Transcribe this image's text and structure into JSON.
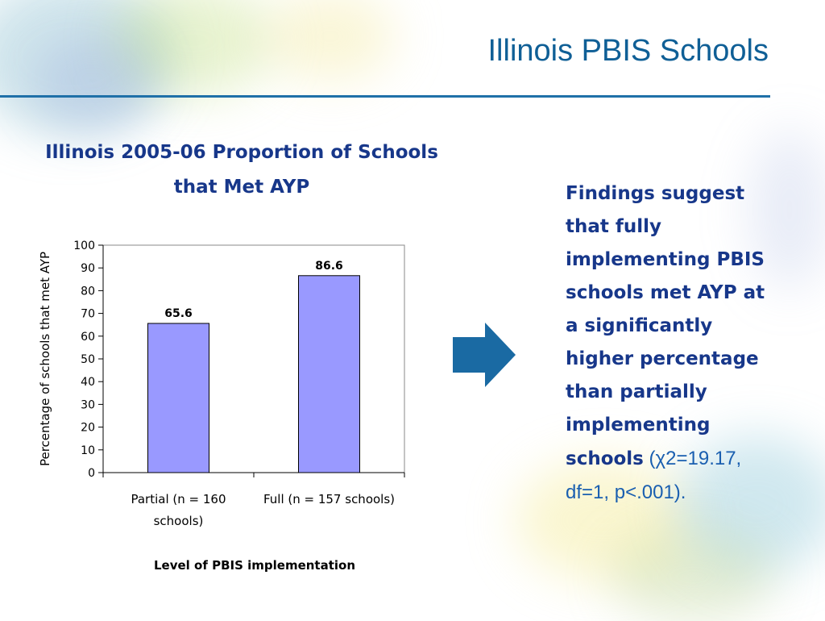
{
  "slide": {
    "title": "Illinois PBIS Schools"
  },
  "chart_data": {
    "type": "bar",
    "title_lines": [
      "Illinois 2005-06 Proportion of Schools",
      "that Met AYP"
    ],
    "categories": [
      [
        "Partial (n = 160",
        "schools)"
      ],
      [
        "Full (n = 157 schools)"
      ]
    ],
    "values": [
      65.6,
      86.6
    ],
    "data_labels": [
      "65.6",
      "86.6"
    ],
    "xlabel": "Level of PBIS implementation",
    "ylabel": "Percentage of schools that met AYP",
    "ylim": [
      0,
      100
    ],
    "yticks": [
      "0",
      "10",
      "20",
      "30",
      "40",
      "50",
      "60",
      "70",
      "80",
      "90",
      "100"
    ],
    "grid": false,
    "bar_color": "#9999ff",
    "bar_outline": "#000000"
  },
  "findings": {
    "lead": "Findings suggest that fully implementing PBIS schools met AYP at a significantly higher percentage than partially implementing schools",
    "stats": " (χ2=19.17, df=1, p<.001)."
  },
  "colors": {
    "title": "#0f5f96",
    "rule": "#1f70a8",
    "heading": "#17378a",
    "arrow": "#1a6aa3"
  },
  "icons": {
    "arrow": "right-arrow-icon"
  }
}
